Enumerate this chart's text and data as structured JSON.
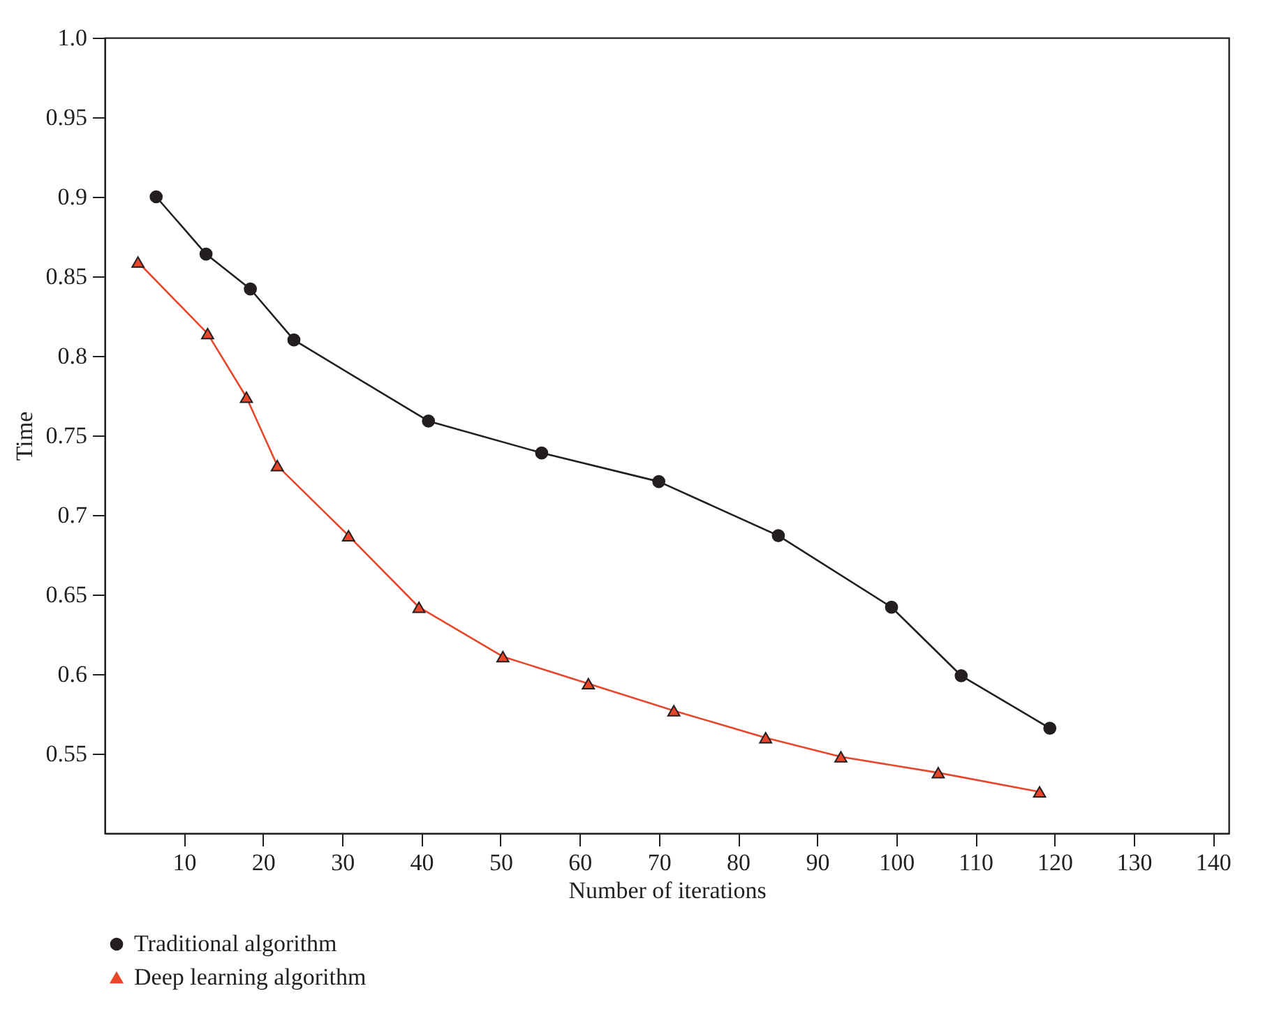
{
  "chart_data": {
    "type": "line",
    "xlabel": "Number of iterations",
    "ylabel": "Time",
    "xlim": [
      0,
      142
    ],
    "xticks": [
      10,
      20,
      30,
      40,
      50,
      60,
      70,
      80,
      90,
      100,
      110,
      120,
      130,
      140
    ],
    "ylim": [
      0.5,
      1.0
    ],
    "yticks": [
      0.55,
      0.6,
      0.65,
      0.7,
      0.75,
      0.8,
      0.85,
      0.9,
      0.95,
      {
        "value": 1.0,
        "label": "1.0"
      }
    ],
    "grid": false,
    "legend": "bottom left",
    "line_style": "solid",
    "series": [
      {
        "name": "Traditional algorithm",
        "color": "#231f20",
        "marker": "circle",
        "x": [
          6.5,
          12.8,
          18.4,
          23.9,
          40.9,
          55.2,
          70.0,
          85.1,
          99.4,
          108.2,
          119.4
        ],
        "values": [
          0.9,
          0.864,
          0.842,
          0.81,
          0.759,
          0.739,
          0.721,
          0.687,
          0.642,
          0.599,
          0.566
        ]
      },
      {
        "name": "Deep learning algorithm",
        "color": "#e8462a",
        "marker": "triangle",
        "x": [
          4.2,
          13.0,
          17.9,
          21.8,
          30.8,
          39.7,
          50.3,
          61.1,
          71.9,
          83.5,
          93.0,
          105.3,
          118.1
        ],
        "values": [
          0.859,
          0.814,
          0.774,
          0.731,
          0.687,
          0.642,
          0.611,
          0.594,
          0.577,
          0.56,
          0.548,
          0.538,
          0.526
        ]
      }
    ]
  }
}
